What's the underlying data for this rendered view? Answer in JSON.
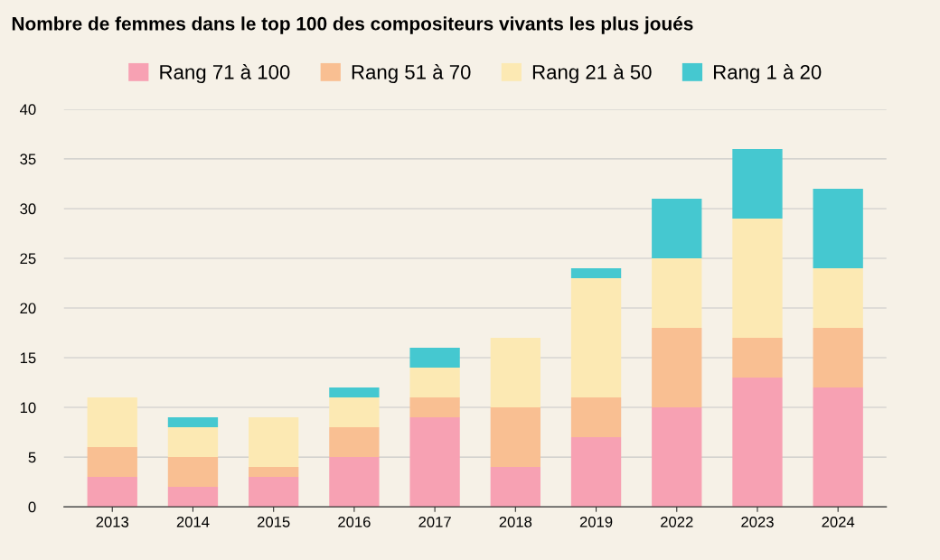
{
  "chart_data": {
    "type": "bar",
    "title": "Nombre de femmes dans le top 100 des compositeurs vivants les plus joués",
    "categories": [
      "2013",
      "2014",
      "2015",
      "2016",
      "2017",
      "2018",
      "2019",
      "2022",
      "2023",
      "2024"
    ],
    "stacked": true,
    "series": [
      {
        "name": "Rang 71 à 100",
        "color": "#f7a1b3",
        "values": [
          3,
          2,
          3,
          5,
          9,
          4,
          7,
          10,
          13,
          12
        ]
      },
      {
        "name": "Rang 51 à 70",
        "color": "#f9bf92",
        "values": [
          3,
          3,
          1,
          3,
          2,
          6,
          4,
          8,
          4,
          6
        ]
      },
      {
        "name": "Rang 21 à 50",
        "color": "#fce9b3",
        "values": [
          5,
          3,
          5,
          3,
          3,
          7,
          12,
          7,
          12,
          6
        ]
      },
      {
        "name": "Rang 1 à 20",
        "color": "#45c8d0",
        "values": [
          0,
          1,
          0,
          1,
          2,
          0,
          1,
          6,
          7,
          8
        ]
      }
    ],
    "ylim": [
      0,
      40
    ],
    "yticks": [
      0,
      5,
      10,
      15,
      20,
      25,
      30,
      35,
      40
    ],
    "grid": "y",
    "legend": "top"
  }
}
